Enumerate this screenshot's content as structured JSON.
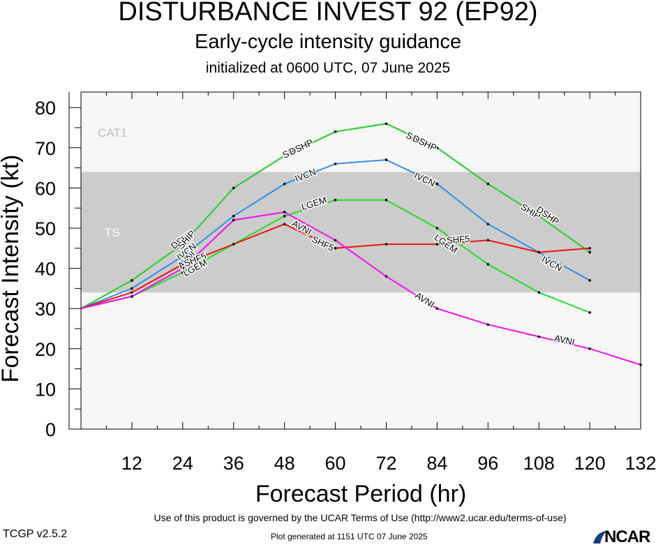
{
  "header": {
    "title": "DISTURBANCE INVEST 92 (EP92)",
    "subtitle": "Early-cycle intensity guidance",
    "init_line": "initialized at 0600 UTC, 07 June 2025"
  },
  "chart_data": {
    "type": "line",
    "title": "DISTURBANCE INVEST 92 (EP92)",
    "subtitle": "Early-cycle intensity guidance",
    "xlabel": "Forecast Period (hr)",
    "ylabel": "Forecast Intensity (kt)",
    "xlim": [
      0,
      132
    ],
    "ylim": [
      0,
      80
    ],
    "x_ticks": [
      12,
      24,
      36,
      48,
      60,
      72,
      84,
      96,
      108,
      120,
      132
    ],
    "y_ticks": [
      0,
      10,
      20,
      30,
      40,
      50,
      60,
      70,
      80
    ],
    "bands": [
      {
        "label": "TS",
        "from": 34,
        "to": 64,
        "color": "#cccccc"
      },
      {
        "label": "CAT1",
        "from": 64,
        "to": 83,
        "color": "#f7f7f7"
      }
    ],
    "series": [
      {
        "name": "DSHP",
        "color": "#33cc33",
        "x": [
          0,
          12,
          24,
          36,
          48,
          60,
          72,
          84,
          96,
          108,
          120
        ],
        "y": [
          30,
          37,
          46,
          60,
          68,
          74,
          76,
          70,
          61,
          53,
          44
        ]
      },
      {
        "name": "SHIP",
        "color": "#33cc33",
        "x": [
          0,
          12,
          24,
          36,
          48,
          60,
          72,
          84,
          96,
          108,
          120
        ],
        "y": [
          30,
          37,
          46,
          60,
          68,
          74,
          76,
          70,
          61,
          53,
          44
        ]
      },
      {
        "name": "IVCN",
        "color": "#2f8fe6",
        "x": [
          0,
          12,
          24,
          36,
          48,
          60,
          72,
          84,
          96,
          108,
          120
        ],
        "y": [
          30,
          35,
          43,
          53,
          61,
          66,
          67,
          61,
          51,
          44,
          37
        ]
      },
      {
        "name": "LGEM",
        "color": "#22dd22",
        "x": [
          0,
          12,
          24,
          36,
          48,
          60,
          72,
          84,
          96,
          108,
          120
        ],
        "y": [
          30,
          33,
          39,
          46,
          53,
          57,
          57,
          50,
          41,
          34,
          29
        ]
      },
      {
        "name": "SHF5",
        "color": "#ee1111",
        "x": [
          0,
          12,
          24,
          36,
          48,
          60,
          72,
          84,
          96,
          108,
          120
        ],
        "y": [
          30,
          34,
          41,
          46,
          51,
          45,
          46,
          46,
          47,
          44,
          45
        ]
      },
      {
        "name": "AVNI",
        "color": "#ee11ee",
        "x": [
          0,
          12,
          24,
          36,
          48,
          60,
          72,
          84,
          96,
          108,
          120,
          132
        ],
        "y": [
          30,
          33,
          40,
          52,
          54,
          47,
          38,
          30,
          26,
          23,
          20,
          16
        ]
      }
    ],
    "line_labels": [
      {
        "text": "DSHP",
        "series": "DSHP",
        "x": 24,
        "y": 47
      },
      {
        "text": "SHIP",
        "series": "SHIP",
        "x": 25,
        "y": 47
      },
      {
        "text": "IVCN",
        "series": "IVCN",
        "x": 25,
        "y": 44
      },
      {
        "text": "AVNI",
        "series": "AVNI",
        "x": 25,
        "y": 42
      },
      {
        "text": "SHF5",
        "series": "SHF5",
        "x": 27,
        "y": 42
      },
      {
        "text": "LGEM",
        "series": "LGEM",
        "x": 27,
        "y": 40
      },
      {
        "text": "SHIP",
        "series": "SHIP",
        "x": 50,
        "y": 69
      },
      {
        "text": "DSHP",
        "series": "DSHP",
        "x": 52,
        "y": 70
      },
      {
        "text": "IVCN",
        "series": "IVCN",
        "x": 53,
        "y": 63
      },
      {
        "text": "LGEM",
        "series": "LGEM",
        "x": 55,
        "y": 56
      },
      {
        "text": "AVNI",
        "series": "AVNI",
        "x": 52,
        "y": 50
      },
      {
        "text": "SHF5",
        "series": "SHF5",
        "x": 57,
        "y": 46
      },
      {
        "text": "SHIP",
        "series": "SHIP",
        "x": 79,
        "y": 72
      },
      {
        "text": "DSHP",
        "series": "DSHP",
        "x": 81,
        "y": 71
      },
      {
        "text": "IVCN",
        "series": "IVCN",
        "x": 81,
        "y": 62
      },
      {
        "text": "LGEM",
        "series": "LGEM",
        "x": 86,
        "y": 46
      },
      {
        "text": "SHF5",
        "series": "SHF5",
        "x": 89,
        "y": 47
      },
      {
        "text": "AVNI",
        "series": "AVNI",
        "x": 81,
        "y": 32
      },
      {
        "text": "SHIP",
        "series": "SHIP",
        "x": 106,
        "y": 54
      },
      {
        "text": "DSHP",
        "series": "DSHP",
        "x": 110,
        "y": 53
      },
      {
        "text": "IVCN",
        "series": "IVCN",
        "x": 111,
        "y": 41
      },
      {
        "text": "AVNI",
        "series": "AVNI",
        "x": 114,
        "y": 22
      }
    ]
  },
  "footer": {
    "terms": "Use of this product is governed by the UCAR Terms of Use (http://www2.ucar.edu/terms-of-use)",
    "version": "TCGP v2.5.2",
    "generated": "Plot generated at 1151 UTC   07 June 2025",
    "logo_text": "NCAR"
  }
}
